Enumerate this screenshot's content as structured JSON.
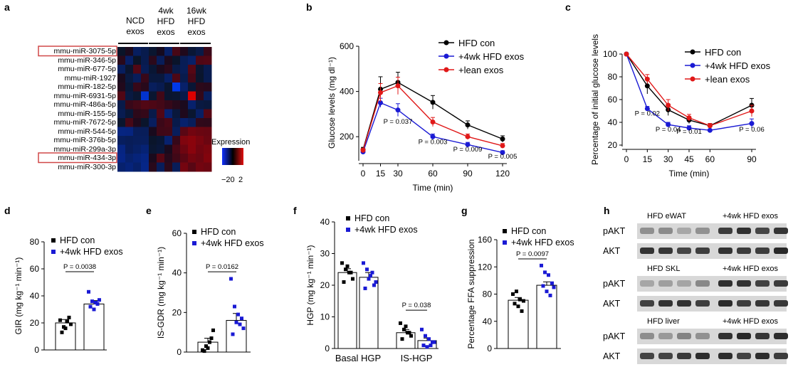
{
  "panel_labels": {
    "a": "a",
    "b": "b",
    "c": "c",
    "d": "d",
    "e": "e",
    "f": "f",
    "g": "g",
    "h": "h"
  },
  "heatmap": {
    "group_headers": [
      {
        "lines": [
          "NCD",
          "exos"
        ]
      },
      {
        "lines": [
          "4wk",
          "HFD",
          "exos"
        ]
      },
      {
        "lines": [
          "16wk",
          "HFD",
          "exos"
        ]
      }
    ],
    "rows": [
      "mmu-miR-3075-5p",
      "mmu-miR-346-5p",
      "mmu-miR-677-5p",
      "mmu-miR-1927",
      "mmu-miR-182-5p",
      "mmu-miR-6931-5p",
      "mmu-miR-486a-5p",
      "mmu-miR-155-5p",
      "mmu-miR-7672-5p",
      "mmu-miR-544-5p",
      "mmu-miR-376b-5p",
      "mmu-miR-299a-3p",
      "mmu-miR-434-3p",
      "mmu-miR-300-3p"
    ],
    "highlighted_rows": [
      0,
      12
    ],
    "legend_title": "Expression",
    "legend_ticks": [
      "−2",
      "0",
      "2"
    ],
    "colors": {
      "low": "#1030ff",
      "mid": "#000000",
      "high": "#e01010",
      "highlight_box": "#d04848"
    }
  },
  "chart_data": [
    {
      "id": "b",
      "type": "line",
      "xlabel": "Time (min)",
      "ylabel": "Glucose levels (mg dl⁻¹)",
      "x": [
        0,
        15,
        30,
        60,
        90,
        120
      ],
      "xlim": [
        0,
        120
      ],
      "ylim": [
        100,
        600
      ],
      "yticks": [
        200,
        400,
        600
      ],
      "series": [
        {
          "name": "HFD con",
          "color": "#000000",
          "values": [
            143,
            410,
            440,
            352,
            252,
            190
          ],
          "err": [
            10,
            55,
            45,
            30,
            18,
            14
          ]
        },
        {
          "name": "+4wk HFD exos",
          "color": "#1a1ad4",
          "values": [
            133,
            350,
            318,
            200,
            165,
            130
          ],
          "err": [
            8,
            20,
            28,
            12,
            10,
            8
          ]
        },
        {
          "name": "+lean exos",
          "color": "#e01818",
          "values": [
            140,
            395,
            425,
            265,
            200,
            160
          ],
          "err": [
            8,
            40,
            38,
            20,
            12,
            10
          ]
        }
      ],
      "annotations": [
        {
          "text": "P = 0.037",
          "x": 30,
          "y": 257
        },
        {
          "text": "P = 0.003",
          "x": 60,
          "y": 168
        },
        {
          "text": "P = 0.009",
          "x": 90,
          "y": 135
        },
        {
          "text": "P = 0.005",
          "x": 120,
          "y": 103
        }
      ]
    },
    {
      "id": "c",
      "type": "line",
      "xlabel": "Time (min)",
      "ylabel": "Percentage of initial glucose levels",
      "x": [
        0,
        15,
        30,
        45,
        60,
        90
      ],
      "xlim": [
        0,
        90
      ],
      "ylim": [
        20,
        100
      ],
      "yticks": [
        20,
        40,
        60,
        80,
        100
      ],
      "series": [
        {
          "name": "HFD con",
          "color": "#000000",
          "values": [
            100,
            72,
            51,
            42,
            37,
            55
          ],
          "err": [
            0,
            7,
            5,
            3,
            2,
            6
          ]
        },
        {
          "name": "+4wk HFD exos",
          "color": "#1a1ad4",
          "values": [
            100,
            52,
            38,
            35,
            33,
            39
          ],
          "err": [
            0,
            2,
            2,
            2,
            1,
            4
          ]
        },
        {
          "name": "+lean exos",
          "color": "#e01818",
          "values": [
            100,
            78,
            55,
            44,
            37,
            50
          ],
          "err": [
            0,
            4,
            5,
            3,
            2,
            5
          ]
        }
      ],
      "annotations": [
        {
          "text": "P = 0.02",
          "x": 15,
          "y": 46
        },
        {
          "text": "P = 0.04",
          "x": 30,
          "y": 32
        },
        {
          "text": "P = 0.01",
          "x": 45,
          "y": 30
        },
        {
          "text": "P = 0.06",
          "x": 90,
          "y": 32
        }
      ]
    },
    {
      "id": "d",
      "type": "bar",
      "ylabel": "GIR (mg kg⁻¹ min⁻¹)",
      "ylim": [
        0,
        80
      ],
      "yticks": [
        0,
        20,
        40,
        60,
        80
      ],
      "series": [
        {
          "name": "HFD con",
          "color": "#000000",
          "mean": 20,
          "err": 2.5,
          "points": [
            22,
            17,
            21,
            19,
            13,
            16,
            24
          ]
        },
        {
          "name": "+4wk HFD exos",
          "color": "#1a1ad4",
          "mean": 34,
          "err": 2.5,
          "points": [
            43,
            36,
            35,
            37,
            32,
            30,
            34
          ]
        }
      ],
      "p_value": "P = 0.0038",
      "p_y": 60
    },
    {
      "id": "e",
      "type": "bar",
      "ylabel": "IS-GDR (mg kg⁻¹ min⁻¹)",
      "ylim": [
        0,
        60
      ],
      "yticks": [
        0,
        20,
        40,
        60
      ],
      "series": [
        {
          "name": "HFD con",
          "color": "#000000",
          "mean": 5,
          "err": 2,
          "points": [
            1,
            3,
            5,
            11,
            0.5,
            2,
            7
          ]
        },
        {
          "name": "+4wk HFD exos",
          "color": "#1a1ad4",
          "mean": 16,
          "err": 3.5,
          "points": [
            37,
            23,
            19,
            17,
            9,
            15,
            14,
            12
          ]
        }
      ],
      "p_value": "P = 0.0162",
      "p_y": 42
    },
    {
      "id": "f",
      "type": "bar",
      "ylabel": "HGP (mg kg⁻¹ min⁻¹)",
      "ylim": [
        0,
        40
      ],
      "yticks": [
        0,
        10,
        20,
        30,
        40
      ],
      "categories": [
        "Basal HGP",
        "IS-HGP"
      ],
      "series": [
        {
          "name": "HFD con",
          "color": "#000000",
          "means": [
            24,
            5
          ],
          "errs": [
            1.2,
            1
          ],
          "points": [
            [
              27,
              25,
              24,
              22,
              21,
              26,
              24
            ],
            [
              8,
              6,
              5,
              4,
              3,
              7,
              5
            ]
          ]
        },
        {
          "name": "+4wk HFD exos",
          "color": "#1a1ad4",
          "means": [
            22.5,
            2.5
          ],
          "errs": [
            1.5,
            0.8
          ],
          "points": [
            [
              27,
              25,
              23,
              20,
              19,
              22,
              24,
              21
            ],
            [
              6,
              4,
              3,
              2,
              1,
              0.5,
              1,
              2
            ]
          ]
        }
      ],
      "p_value": "P = 0.038",
      "p_y": 13
    },
    {
      "id": "g",
      "type": "bar",
      "ylabel": "Percentage FFA suppression",
      "ylim": [
        0,
        160
      ],
      "yticks": [
        0,
        40,
        80,
        120,
        160
      ],
      "series": [
        {
          "name": "HFD con",
          "color": "#000000",
          "mean": 71,
          "err": 4,
          "points": [
            80,
            84,
            72,
            70,
            66,
            62,
            55
          ]
        },
        {
          "name": "+4wk HFD exos",
          "color": "#1a1ad4",
          "mean": 93,
          "err": 5,
          "points": [
            122,
            112,
            108,
            96,
            92,
            84,
            78,
            90
          ]
        }
      ],
      "p_value": "P = 0.0097",
      "p_y": 136
    }
  ],
  "blots": [
    {
      "title_left": "HFD eWAT",
      "title_right": "+4wk HFD exos",
      "rows": [
        "pAKT",
        "AKT"
      ]
    },
    {
      "title_left": "HFD SKL",
      "title_right": "+4wk HFD exos",
      "rows": [
        "pAKT",
        "AKT"
      ]
    },
    {
      "title_left": "HFD liver",
      "title_right": "+4wk HFD exos",
      "rows": [
        "pAKT",
        "AKT"
      ]
    }
  ]
}
